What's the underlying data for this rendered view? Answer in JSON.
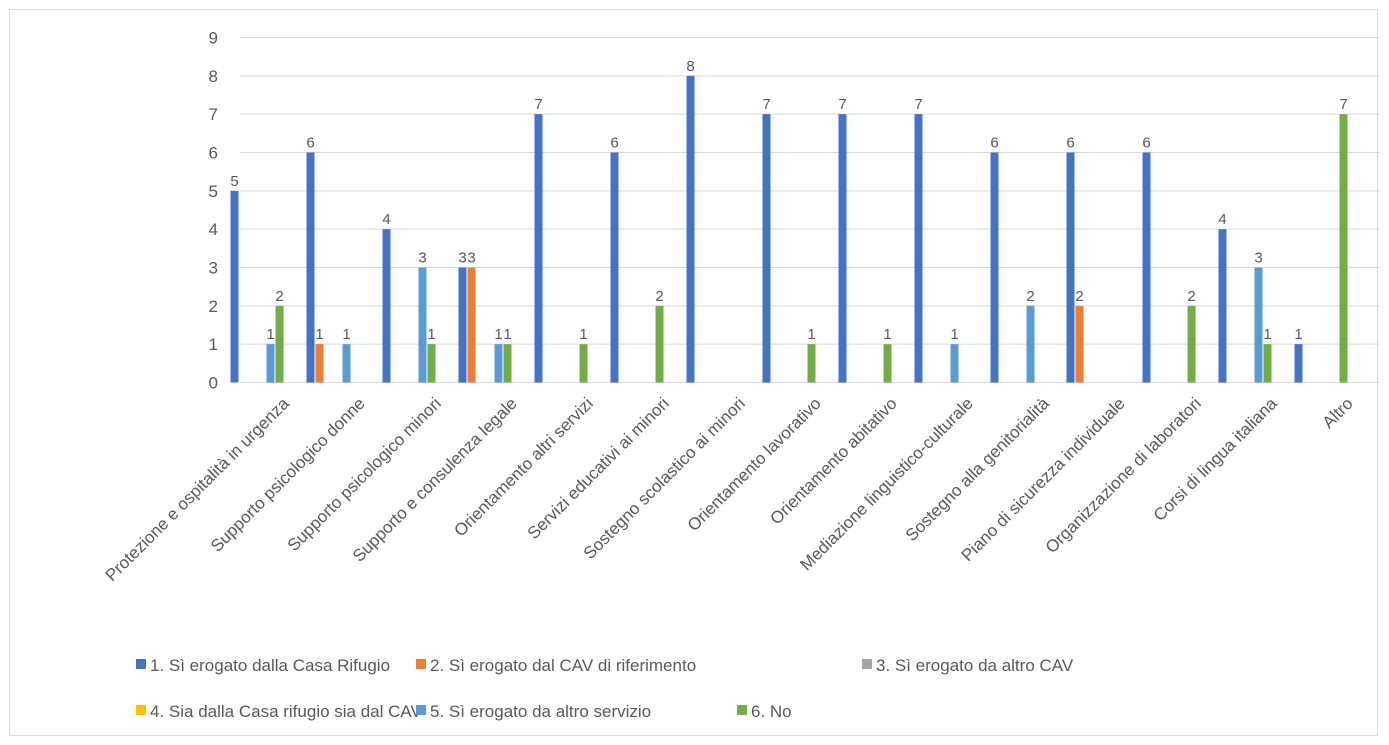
{
  "chart_data": {
    "type": "bar",
    "title": "",
    "xlabel": "",
    "ylabel": "",
    "ylim": [
      0,
      9
    ],
    "yticks": [
      0,
      1,
      2,
      3,
      4,
      5,
      6,
      7,
      8,
      9
    ],
    "grid": true,
    "legend_position": "bottom",
    "categories": [
      "Protezione e ospitalità in urgenza",
      "Supporto psicologico donne",
      "Supporto psicologico minori",
      "Supporto e consulenza legale",
      "Orientamento altri servizi",
      "Servizi educativi ai minori",
      "Sostegno scolastico ai minori",
      "Orientamento lavorativo",
      "Orientamento abitativo",
      "Mediazione linguistico-culturale",
      "Sostegno alla genitorialità",
      "Piano di sicurezza individuale",
      "Organizzazione di laboratori",
      "Corsi di lingua italiana",
      "Altro"
    ],
    "series": [
      {
        "name": "1. Sì erogato dalla Casa Rifugio",
        "color": "#4472C4",
        "values": [
          5,
          6,
          4,
          3,
          7,
          6,
          8,
          7,
          7,
          7,
          6,
          6,
          6,
          4,
          1
        ]
      },
      {
        "name": "2. Sì erogato dal CAV di riferimento",
        "color": "#ED7D31",
        "values": [
          0,
          1,
          0,
          3,
          0,
          0,
          0,
          0,
          0,
          0,
          0,
          2,
          0,
          0,
          0
        ]
      },
      {
        "name": "3. Sì erogato da altro CAV",
        "color": "#A5A5A5",
        "values": [
          0,
          0,
          0,
          0,
          0,
          0,
          0,
          0,
          0,
          0,
          0,
          0,
          0,
          0,
          0
        ]
      },
      {
        "name": "4. Sia dalla Casa rifugio sia dal CAV",
        "color": "#FFC000",
        "values": [
          0,
          0,
          0,
          0,
          0,
          0,
          0,
          0,
          0,
          0,
          0,
          0,
          0,
          0,
          0
        ]
      },
      {
        "name": "5. Sì erogato da altro servizio",
        "color": "#5B9BD5",
        "values": [
          1,
          1,
          3,
          1,
          0,
          0,
          0,
          0,
          0,
          1,
          2,
          0,
          0,
          3,
          0
        ]
      },
      {
        "name": "6. No",
        "color": "#70AD47",
        "values": [
          2,
          0,
          1,
          1,
          1,
          2,
          0,
          1,
          1,
          0,
          0,
          0,
          2,
          1,
          7
        ]
      }
    ]
  }
}
